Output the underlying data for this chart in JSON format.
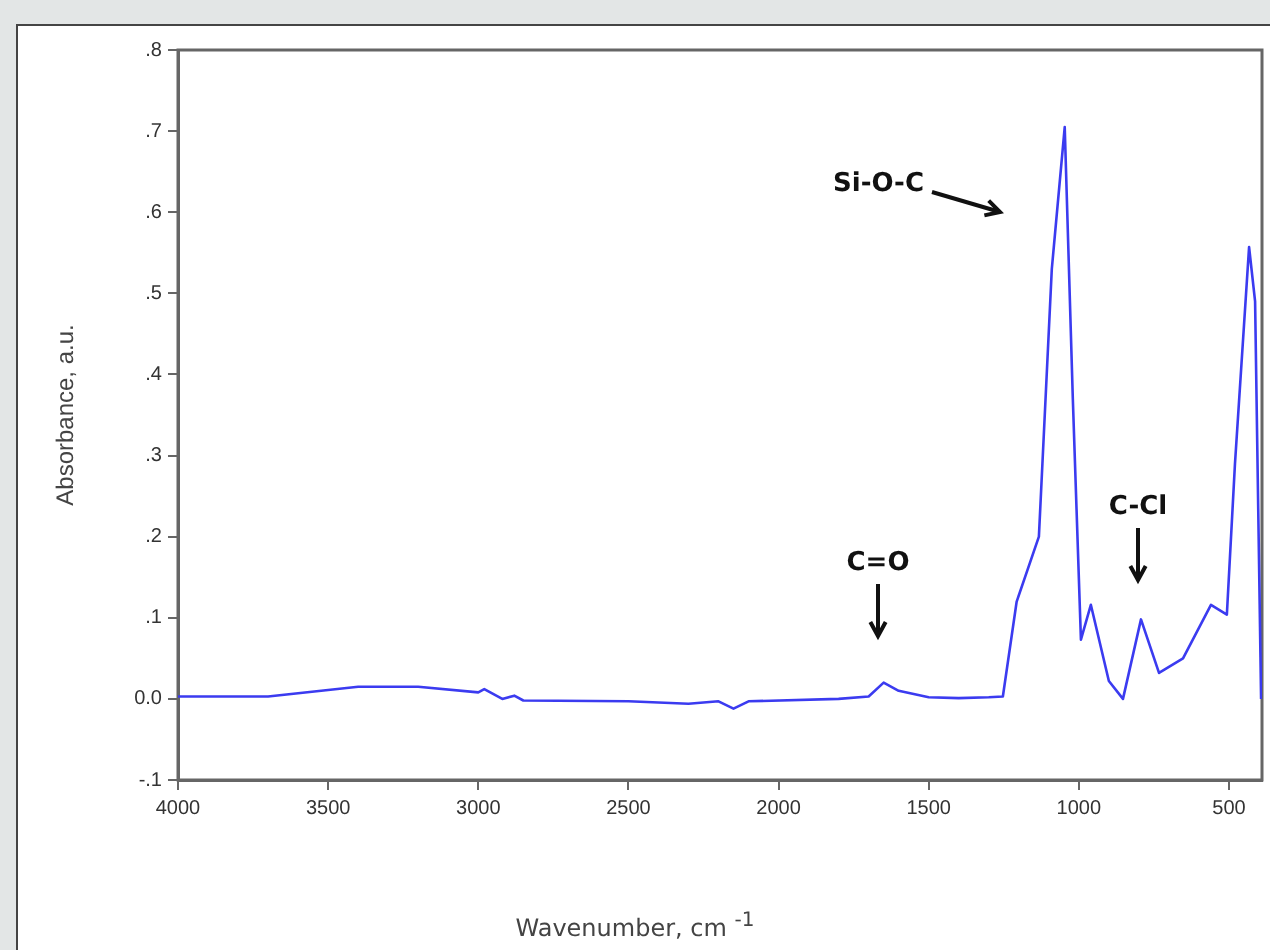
{
  "chart_data": {
    "type": "line",
    "xlabel": "Wavenumber, cm $^{-1}$",
    "ylabel": "Absorbance, a.u.",
    "x": [
      4000,
      3700,
      3400,
      3200,
      3000,
      2980,
      2920,
      2880,
      2850,
      2500,
      2300,
      2200,
      2150,
      2100,
      1800,
      1700,
      1650,
      1600,
      1500,
      1400,
      1300,
      1253,
      1207,
      1133,
      1090,
      1047,
      1020,
      993,
      960,
      900,
      853,
      793,
      733,
      653,
      560,
      507,
      480,
      433,
      413,
      393
    ],
    "series": [
      {
        "color": "#3b3bf0",
        "values": [
          0.003,
          0.003,
          0.015,
          0.015,
          0.008,
          0.012,
          0.0,
          0.004,
          -0.002,
          -0.003,
          -0.006,
          -0.003,
          -0.012,
          -0.003,
          0.0,
          0.003,
          0.02,
          0.01,
          0.002,
          0.001,
          0.002,
          0.003,
          0.12,
          0.2,
          0.53,
          0.705,
          0.37,
          0.073,
          0.116,
          0.022,
          0.0,
          0.098,
          0.032,
          0.05,
          0.116,
          0.104,
          0.29,
          0.557,
          0.49,
          0.0
        ]
      }
    ],
    "xlim": [
      4000,
      390
    ],
    "xticks": [
      4000,
      3500,
      3000,
      2500,
      2000,
      1500,
      1000,
      500
    ],
    "ylim": [
      -0.1,
      0.8
    ],
    "yticks": [
      {
        "value": -0.1,
        "label": "-.1"
      },
      {
        "value": 0,
        "label": "0.0"
      },
      {
        "value": 0.1,
        "label": ".1"
      },
      {
        "value": 0.2,
        "label": ".2"
      },
      {
        "value": 0.3,
        "label": ".3"
      },
      {
        "value": 0.4,
        "label": ".4"
      },
      {
        "value": 0.5,
        "label": ".5"
      },
      {
        "value": 0.6,
        "label": ".6"
      },
      {
        "value": 0.7,
        "label": ".7"
      },
      {
        "value": 0.8,
        "label": ".8"
      }
    ],
    "annotations": [
      "Si-O-C",
      "C=O",
      "C-Cl"
    ],
    "grid": false,
    "legend": false,
    "marker": "none",
    "line_style": "solid"
  }
}
